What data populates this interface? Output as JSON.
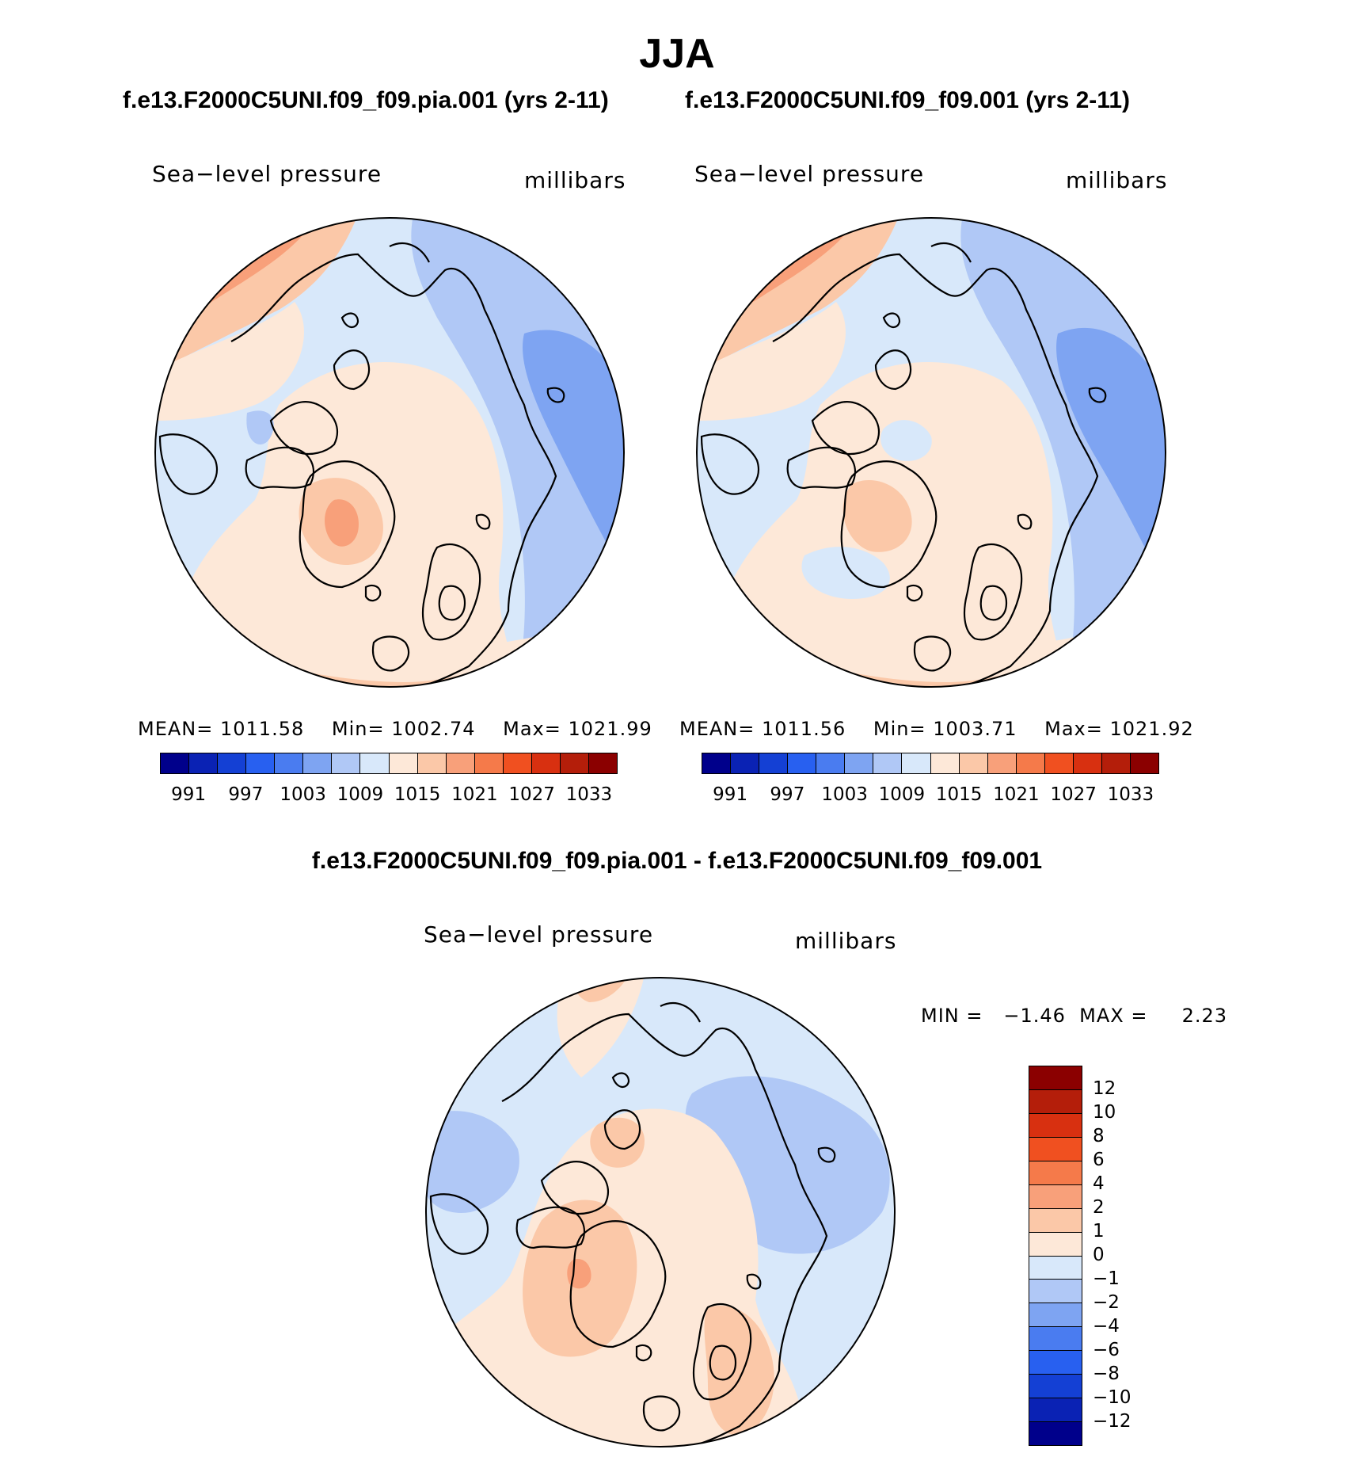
{
  "figure": {
    "season": "JJA",
    "case1_title": "f.e13.F2000C5UNI.f09_f09.pia.001 (yrs 2-11)",
    "case2_title": "f.e13.F2000C5UNI.f09_f09.001 (yrs 2-11)",
    "diff_title": "f.e13.F2000C5UNI.f09_f09.pia.001 - f.e13.F2000C5UNI.f09_f09.001"
  },
  "panels": [
    {
      "variable": "Sea−level pressure",
      "units": "millibars",
      "mean_label": "MEAN=",
      "mean_value": "1011.58",
      "min_label": "Min=",
      "min_value": "1002.74",
      "max_label": "Max=",
      "max_value": "1021.99"
    },
    {
      "variable": "Sea−level pressure",
      "units": "millibars",
      "mean_label": "MEAN=",
      "mean_value": "1011.56",
      "min_label": "Min=",
      "min_value": "1003.71",
      "max_label": "Max=",
      "max_value": "1021.92"
    },
    {
      "variable": "Sea−level pressure",
      "units": "millibars",
      "minmax_text": "MIN =   −1.46  MAX =     2.23"
    }
  ],
  "colorbar_abs": {
    "labels": [
      "991",
      "997",
      "1003",
      "1009",
      "1015",
      "1021",
      "1027",
      "1033"
    ],
    "colors": [
      "#00008b",
      "#0a22b4",
      "#1440d4",
      "#2860f0",
      "#4a7cf0",
      "#7ea4f2",
      "#b0c8f6",
      "#d8e8fa",
      "#fde8d8",
      "#fbc8a8",
      "#f8a07a",
      "#f57a4a",
      "#f05020",
      "#d83010",
      "#b41e0a",
      "#8b0000"
    ]
  },
  "colorbar_diff": {
    "labels": [
      "12",
      "10",
      "8",
      "6",
      "4",
      "2",
      "1",
      "0",
      "−1",
      "−2",
      "−4",
      "−6",
      "−8",
      "−10",
      "−12"
    ],
    "colors": [
      "#8b0000",
      "#b41e0a",
      "#d83010",
      "#f05020",
      "#f57a4a",
      "#f8a07a",
      "#fbc8a8",
      "#fde8d8",
      "#d8e8fa",
      "#b0c8f6",
      "#7ea4f2",
      "#4a7cf0",
      "#2860f0",
      "#1440d4",
      "#0a22b4",
      "#00008b"
    ]
  },
  "chart_data": [
    {
      "type": "heatmap",
      "projection": "north polar stereographic",
      "title": "f.e13.F2000C5UNI.f09_f09.pia.001 (yrs 2-11)",
      "variable": "Sea-level pressure",
      "units": "millibars",
      "mean": 1011.58,
      "min": 1002.74,
      "max": 1021.99,
      "contour_levels": [
        991,
        994,
        997,
        1000,
        1003,
        1006,
        1009,
        1012,
        1015,
        1018,
        1021,
        1024,
        1027,
        1030,
        1033
      ]
    },
    {
      "type": "heatmap",
      "projection": "north polar stereographic",
      "title": "f.e13.F2000C5UNI.f09_f09.001 (yrs 2-11)",
      "variable": "Sea-level pressure",
      "units": "millibars",
      "mean": 1011.56,
      "min": 1003.71,
      "max": 1021.92,
      "contour_levels": [
        991,
        994,
        997,
        1000,
        1003,
        1006,
        1009,
        1012,
        1015,
        1018,
        1021,
        1024,
        1027,
        1030,
        1033
      ]
    },
    {
      "type": "heatmap",
      "projection": "north polar stereographic",
      "title": "f.e13.F2000C5UNI.f09_f09.pia.001 - f.e13.F2000C5UNI.f09_f09.001",
      "variable": "Sea-level pressure difference",
      "units": "millibars",
      "min": -1.46,
      "max": 2.23,
      "contour_levels": [
        -12,
        -10,
        -8,
        -6,
        -4,
        -2,
        -1,
        0,
        1,
        2,
        4,
        6,
        8,
        10,
        12
      ]
    }
  ]
}
